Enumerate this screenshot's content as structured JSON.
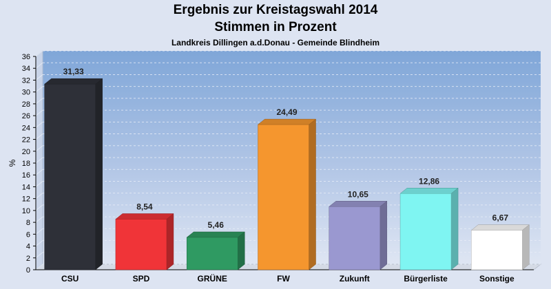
{
  "title": "Ergebnis zur Kreistagswahl 2014",
  "subtitle": "Stimmen in Prozent",
  "caption": "Landkreis Dillingen a.d.Donau - Gemeinde Blindheim",
  "chart_data": {
    "type": "bar",
    "title": "Ergebnis zur Kreistagswahl 2014",
    "subtitle": "Stimmen in Prozent",
    "ylabel": "%",
    "xlabel": "",
    "ylim": [
      0,
      36
    ],
    "ytick_step": 2,
    "grid": true,
    "categories": [
      "CSU",
      "SPD",
      "GRÜNE",
      "FW",
      "Zukunft",
      "Bürgerliste",
      "Sonstige"
    ],
    "values": [
      31.33,
      8.54,
      5.46,
      24.49,
      10.65,
      12.86,
      6.67
    ],
    "value_labels": [
      "31,33",
      "8,54",
      "5,46",
      "24,49",
      "10,65",
      "12,86",
      "6,67"
    ],
    "colors": [
      "#2e3038",
      "#f03438",
      "#2f9a62",
      "#f5962e",
      "#9a98d0",
      "#7ff5f2",
      "#ffffff"
    ]
  }
}
